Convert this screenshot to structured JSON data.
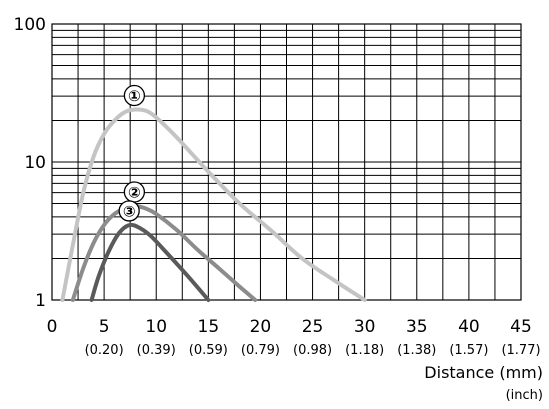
{
  "chart_data": {
    "type": "line",
    "y_scale": "log",
    "ylim": [
      1,
      100
    ],
    "xlim": [
      0,
      45
    ],
    "y_ticks": [
      "1",
      "10",
      "100"
    ],
    "x_ticks": [
      "0",
      "5",
      "10",
      "15",
      "20",
      "25",
      "30",
      "35",
      "40",
      "45"
    ],
    "x_ticks_inch": [
      "(0.20)",
      "(0.39)",
      "(0.59)",
      "(0.79)",
      "(0.98)",
      "(1.18)",
      "(1.38)",
      "(1.57)",
      "(1.77)"
    ],
    "xlabel": "Distance (mm)",
    "xlabel_unit": "(inch)",
    "ylabel": "",
    "grid": true,
    "series": [
      {
        "name": "①",
        "color": "#c4c4c4",
        "x": [
          1,
          2,
          3,
          4,
          5,
          6,
          7,
          8,
          9,
          10,
          12,
          15,
          18,
          21,
          24,
          27,
          30
        ],
        "y": [
          1,
          2.5,
          6,
          11,
          16,
          20,
          23,
          24,
          23.5,
          21,
          15,
          8.5,
          5,
          3.2,
          2,
          1.4,
          1
        ]
      },
      {
        "name": "②",
        "color": "#8c8c8c",
        "x": [
          2,
          3,
          4,
          5,
          6,
          7,
          8,
          9,
          10,
          12,
          14,
          16,
          18,
          19.5
        ],
        "y": [
          1,
          1.7,
          2.6,
          3.5,
          4.2,
          4.6,
          4.8,
          4.6,
          4.2,
          3.2,
          2.3,
          1.7,
          1.25,
          1
        ]
      },
      {
        "name": "③",
        "color": "#5a5a5a",
        "x": [
          3.8,
          4.5,
          5.5,
          6.5,
          7.5,
          8.5,
          9.5,
          11,
          13,
          15
        ],
        "y": [
          1,
          1.5,
          2.3,
          3.1,
          3.5,
          3.3,
          2.9,
          2.2,
          1.5,
          1
        ]
      }
    ]
  }
}
